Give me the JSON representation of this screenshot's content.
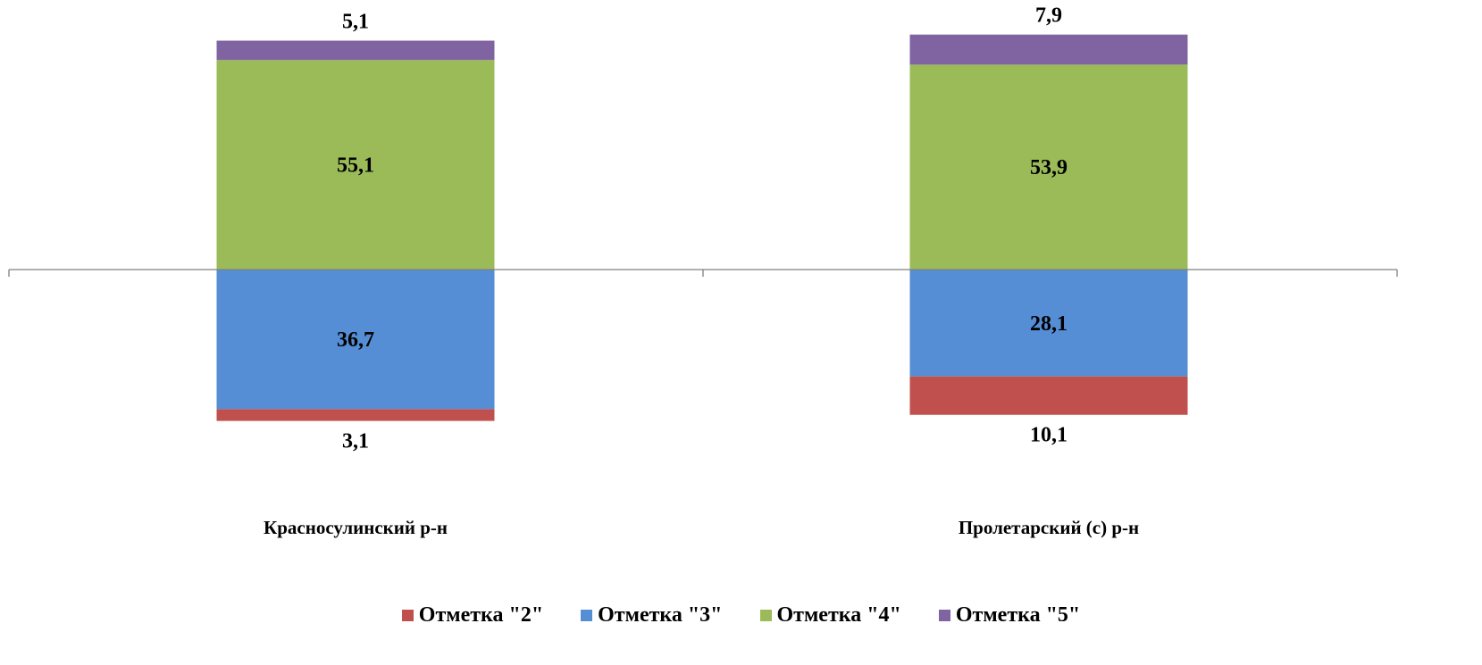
{
  "chart_data": {
    "type": "bar",
    "stacked": true,
    "diverging": true,
    "categories": [
      "Красносулинский р-н",
      "Пролетарский (с) р-н"
    ],
    "series": [
      {
        "name": "Отметка \"2\"",
        "values": [
          3.1,
          10.1
        ],
        "labels": [
          "3,1",
          "10,1"
        ],
        "color": "#c0504d",
        "direction": "down"
      },
      {
        "name": "Отметка \"3\"",
        "values": [
          36.7,
          28.1
        ],
        "labels": [
          "36,7",
          "28,1"
        ],
        "color": "#558ed5",
        "direction": "down"
      },
      {
        "name": "Отметка \"4\"",
        "values": [
          55.1,
          53.9
        ],
        "labels": [
          "55,1",
          "53,9"
        ],
        "color": "#9bbb59",
        "direction": "up"
      },
      {
        "name": "Отметка \"5\"",
        "values": [
          5.1,
          7.9
        ],
        "labels": [
          "5,1",
          "7,9"
        ],
        "color": "#8064a2",
        "direction": "up"
      }
    ],
    "legend_position": "bottom",
    "grid": false
  }
}
